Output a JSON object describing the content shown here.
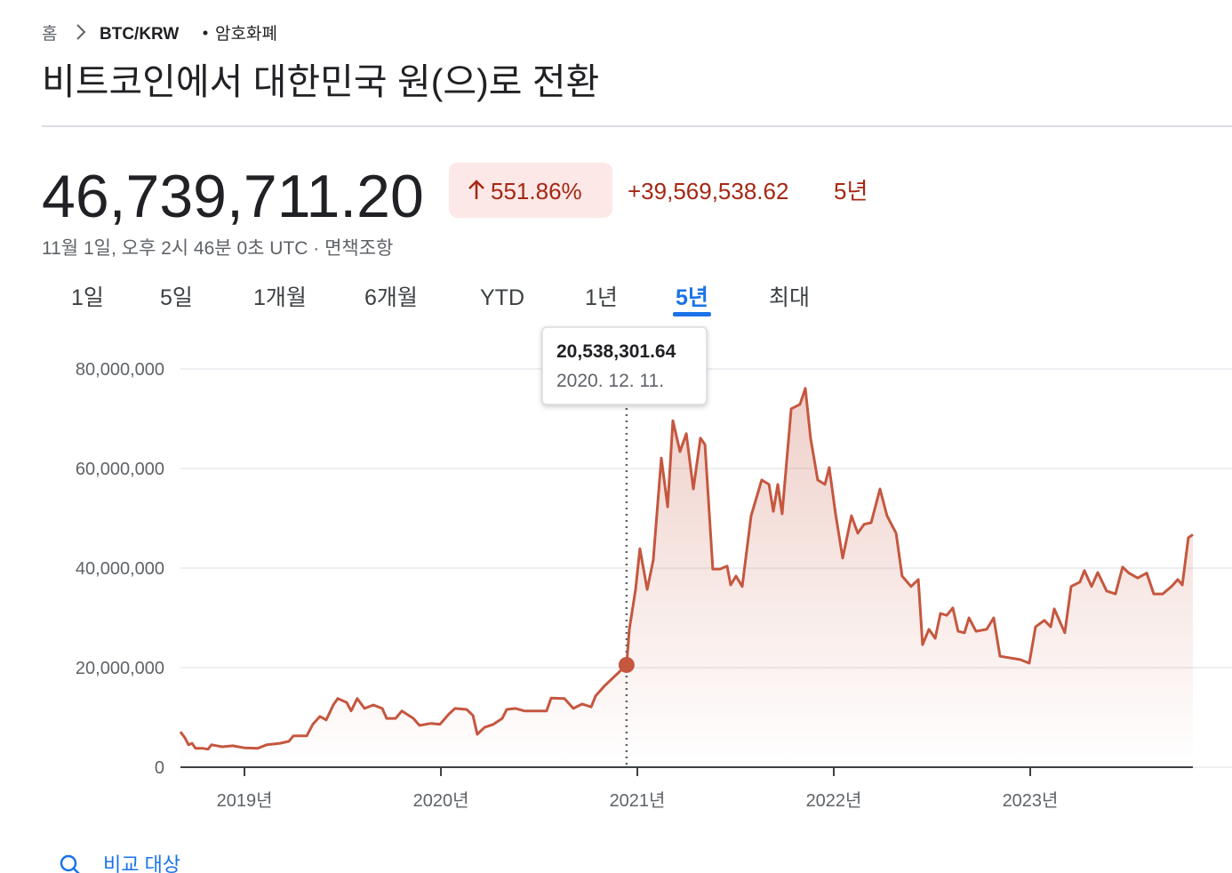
{
  "breadcrumb": {
    "home": "홈",
    "symbol": "BTC/KRW",
    "category": "암호화폐"
  },
  "title": "비트코인에서 대한민국 원(으)로 전환",
  "price": "46,739,711.20",
  "change_percent": "551.86%",
  "change_amount": "+39,569,538.62",
  "change_period": "5년",
  "timestamp": "11월 1일, 오후 2시 46분 0초 UTC · 면책조항",
  "ranges": [
    "1일",
    "5일",
    "1개월",
    "6개월",
    "YTD",
    "1년",
    "5년",
    "최대"
  ],
  "selected_range": 6,
  "compare": "비교 대상",
  "chart_data": {
    "type": "line",
    "color": "#c5573f",
    "grid": true,
    "xlim": [
      2018.674,
      2023.828
    ],
    "ylim": [
      0,
      80000000
    ],
    "xticks": [
      {
        "value": 2019,
        "label": "2019년"
      },
      {
        "value": 2020,
        "label": "2020년"
      },
      {
        "value": 2021,
        "label": "2021년"
      },
      {
        "value": 2022,
        "label": "2022년"
      },
      {
        "value": 2023,
        "label": "2023년"
      }
    ],
    "yticks": [
      0,
      {
        "value": 20000000,
        "label": "20,000,000"
      },
      {
        "value": 40000000,
        "label": "40,000,000"
      },
      {
        "value": 60000000,
        "label": "60,000,000"
      },
      {
        "value": 80000000,
        "label": "80,000,000"
      }
    ],
    "tooltip": {
      "index": 55,
      "value_label": "20,538,301.64",
      "date": "2020. 12. 11."
    },
    "x": [
      2018.674,
      2018.697,
      2018.715,
      2018.733,
      2018.751,
      2018.787,
      2018.814,
      2018.832,
      2018.887,
      2018.941,
      2018.998,
      2019.068,
      2019.113,
      2019.181,
      2019.226,
      2019.249,
      2019.317,
      2019.348,
      2019.384,
      2019.416,
      2019.452,
      2019.475,
      2019.52,
      2019.543,
      2019.574,
      2019.611,
      2019.656,
      2019.701,
      2019.724,
      2019.769,
      2019.801,
      2019.86,
      2019.891,
      2019.95,
      2019.995,
      2020.041,
      2020.072,
      2020.131,
      2020.163,
      2020.185,
      2020.222,
      2020.267,
      2020.312,
      2020.335,
      2020.38,
      2020.425,
      2020.47,
      2020.538,
      2020.561,
      2020.629,
      2020.674,
      2020.719,
      2020.765,
      2020.787,
      2020.832,
      2020.945,
      2020.959,
      2020.991,
      2021.013,
      2021.05,
      2021.081,
      2021.122,
      2021.154,
      2021.181,
      2021.217,
      2021.249,
      2021.285,
      2021.321,
      2021.344,
      2021.384,
      2021.421,
      2021.457,
      2021.475,
      2021.502,
      2021.534,
      2021.579,
      2021.633,
      2021.67,
      2021.692,
      2021.715,
      2021.737,
      2021.783,
      2021.828,
      2021.855,
      2021.882,
      2021.918,
      2021.955,
      2021.977,
      2022.009,
      2022.045,
      2022.09,
      2022.122,
      2022.154,
      2022.19,
      2022.235,
      2022.271,
      2022.317,
      2022.348,
      2022.393,
      2022.43,
      2022.452,
      2022.484,
      2022.516,
      2022.543,
      2022.575,
      2022.606,
      2022.633,
      2022.665,
      2022.688,
      2022.724,
      2022.778,
      2022.814,
      2022.846,
      2022.891,
      2022.95,
      2022.995,
      2023.027,
      2023.072,
      2023.104,
      2023.122,
      2023.176,
      2023.208,
      2023.253,
      2023.276,
      2023.312,
      2023.344,
      2023.389,
      2023.434,
      2023.47,
      2023.502,
      2023.547,
      2023.593,
      2023.629,
      2023.674,
      2023.719,
      2023.751,
      2023.774,
      2023.805,
      2023.828
    ],
    "values": [
      7100000,
      5900000,
      4500000,
      4800000,
      3800000,
      3800000,
      3600000,
      4500000,
      4100000,
      4300000,
      3900000,
      3800000,
      4500000,
      4800000,
      5200000,
      6300000,
      6300000,
      8600000,
      10200000,
      9500000,
      12500000,
      13800000,
      13000000,
      11300000,
      13800000,
      11800000,
      12500000,
      11800000,
      9800000,
      9800000,
      11300000,
      9800000,
      8400000,
      8800000,
      8600000,
      10700000,
      11800000,
      11600000,
      10400000,
      6600000,
      8000000,
      8600000,
      9800000,
      11600000,
      11800000,
      11300000,
      11300000,
      11300000,
      13900000,
      13800000,
      11800000,
      12700000,
      12100000,
      14300000,
      16300000,
      20538301.64,
      27700000,
      35700000,
      43900000,
      35700000,
      41600000,
      62100000,
      52300000,
      69600000,
      63400000,
      67000000,
      55900000,
      66100000,
      64800000,
      39800000,
      39800000,
      40400000,
      36600000,
      38400000,
      36300000,
      50500000,
      57700000,
      56800000,
      51400000,
      56800000,
      50900000,
      72000000,
      72900000,
      76100000,
      66100000,
      57700000,
      56800000,
      60200000,
      50900000,
      42000000,
      50500000,
      47000000,
      48800000,
      49100000,
      55900000,
      50500000,
      47000000,
      38400000,
      36300000,
      37700000,
      24600000,
      27700000,
      25900000,
      30900000,
      30500000,
      32000000,
      27300000,
      27000000,
      30000000,
      27300000,
      27700000,
      30000000,
      22300000,
      22000000,
      21600000,
      20900000,
      28200000,
      29500000,
      28200000,
      31800000,
      27000000,
      36300000,
      37200000,
      39500000,
      36300000,
      39100000,
      35400000,
      34800000,
      40200000,
      39000000,
      38000000,
      39000000,
      34800000,
      34800000,
      36300000,
      37700000,
      36600000,
      46100000,
      46739711.2
    ]
  }
}
